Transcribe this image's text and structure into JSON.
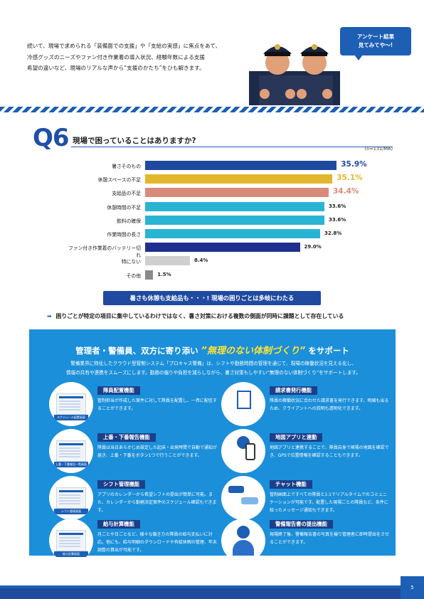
{
  "intro": {
    "line1": "続いて、現場で求められる「装備面での支援」や「支給の実感」に焦点をあて、",
    "line2": "冷感グッズのニーズやファン付き作業着の導入状況、経験年数による支援",
    "line3": "希望の違いなど、現場のリアルな声から“支援のかたち”をひも解きます。"
  },
  "bubble": {
    "line1": "アンケート結果",
    "line2": "見てみてや〜!"
  },
  "question": {
    "number": "Q6",
    "title": "現場で困っていることはありますか?",
    "note": "(n=131/MA)"
  },
  "chart_data": {
    "type": "bar",
    "orientation": "horizontal",
    "categories": [
      "暑さそのもの",
      "休憩スペースの不足",
      "支給品の不足",
      "休憩時間の不足",
      "飲料の確保",
      "作業時間の長さ",
      "ファン付き作業着のバッテリー切れ",
      "特にない",
      "その他"
    ],
    "values": [
      35.9,
      35.1,
      34.4,
      33.6,
      33.6,
      32.8,
      29.0,
      8.4,
      1.5
    ],
    "value_labels": [
      "35.9%",
      "35.1%",
      "34.4%",
      "33.6%",
      "33.6%",
      "32.8%",
      "29.0%",
      "8.4%",
      "1.5%"
    ],
    "unit": "%",
    "colors": [
      "#1f4aa0",
      "#e2b72b",
      "#d98b7b",
      "#2ab4d4",
      "#2ab4d4",
      "#2ab4d4",
      "#1f2f8f",
      "#cfcfcf",
      "#8a8a8a"
    ],
    "value_colors": [
      "#1f4aa0",
      "#e2b72b",
      "#d98b7b",
      "#222222",
      "#222222",
      "#222222",
      "#222222",
      "#222222",
      "#222222"
    ],
    "xlim": [
      0,
      40
    ],
    "grid": false
  },
  "summary": "暑さも休憩も支給品も・・・! 現場の困りごとは多岐にわたる",
  "conclusion": "困りごとが特定の項目に集中しているわけではなく、暑さ対策における複数の側面が同時に課題として存在している",
  "panel": {
    "title_pre": "管理者・警備員、双方に寄り添い",
    "title_highlight": "”無理のない体制づくり”",
    "title_post": "をサポート",
    "lead1": "警備業界に特化したクラウド型管制システム「プロキャス警備」は、シフトや勤務時間の管理を通じて、現場の稼働状況を見える化し、",
    "lead2": "情報の共有や連携をスムーズにします。勤務の偏りや負担を減らしながら、暑さ対策もしやすい“無理のない体制づくり”をサポートします。"
  },
  "features": [
    {
      "title": "隊員配置機能",
      "body": "管制担当が作成した案件に対して隊員を配置し、一斉に配信することができます。",
      "tag": "スケジュール配置画面"
    },
    {
      "title": "請求書発行機能",
      "body": "隊員の稼働状況に合わせた請求書を発行できます。明細も出るため、クライアントへの説明も透明化できます。",
      "tag": ""
    },
    {
      "title": "上番・下番報告機能",
      "body": "隊員は当日あらかじめ設定した起床・出発時間で自動で通知が届き、上番・下番をボタン1つで行うことができます。",
      "tag": "上番・下番報告一覧画面"
    },
    {
      "title": "地図アプリと連動",
      "body": "地図アプリと連携することで、隊員自身で現場の地図を確認でき、GPSで位置情報を確認することもできます。",
      "tag": ""
    },
    {
      "title": "シフト管理機能",
      "body": "アプリのカレンダーから希望シフトの提出が簡単に可能。また、カレンダーから勤務決定案件のスケジュール確認もできます。",
      "tag": "シフト管理画面"
    },
    {
      "title": "チャット機能",
      "body": "管制画面上ですべての隊員と1:1でリアルタイムでのコミュニケーションが可能です。配置した現場ごとの隊員など、条件に絞ったメッセージ通知もできます。",
      "tag": ""
    },
    {
      "title": "給与計算機能",
      "body": "月ごとや日ごとなど、様々な働き方の隊員の給与支払いに対応。他にも、給与明細のダウンロードや有給休暇の管理、年末調整の算出が可能です。",
      "tag": "給与計算画面"
    },
    {
      "title": "警備報告書の提出機能",
      "body": "現場終了後、警備報告書の写真を撮り管理者に即時提出をさせることができます。",
      "tag": ""
    }
  ],
  "page_number": "5"
}
